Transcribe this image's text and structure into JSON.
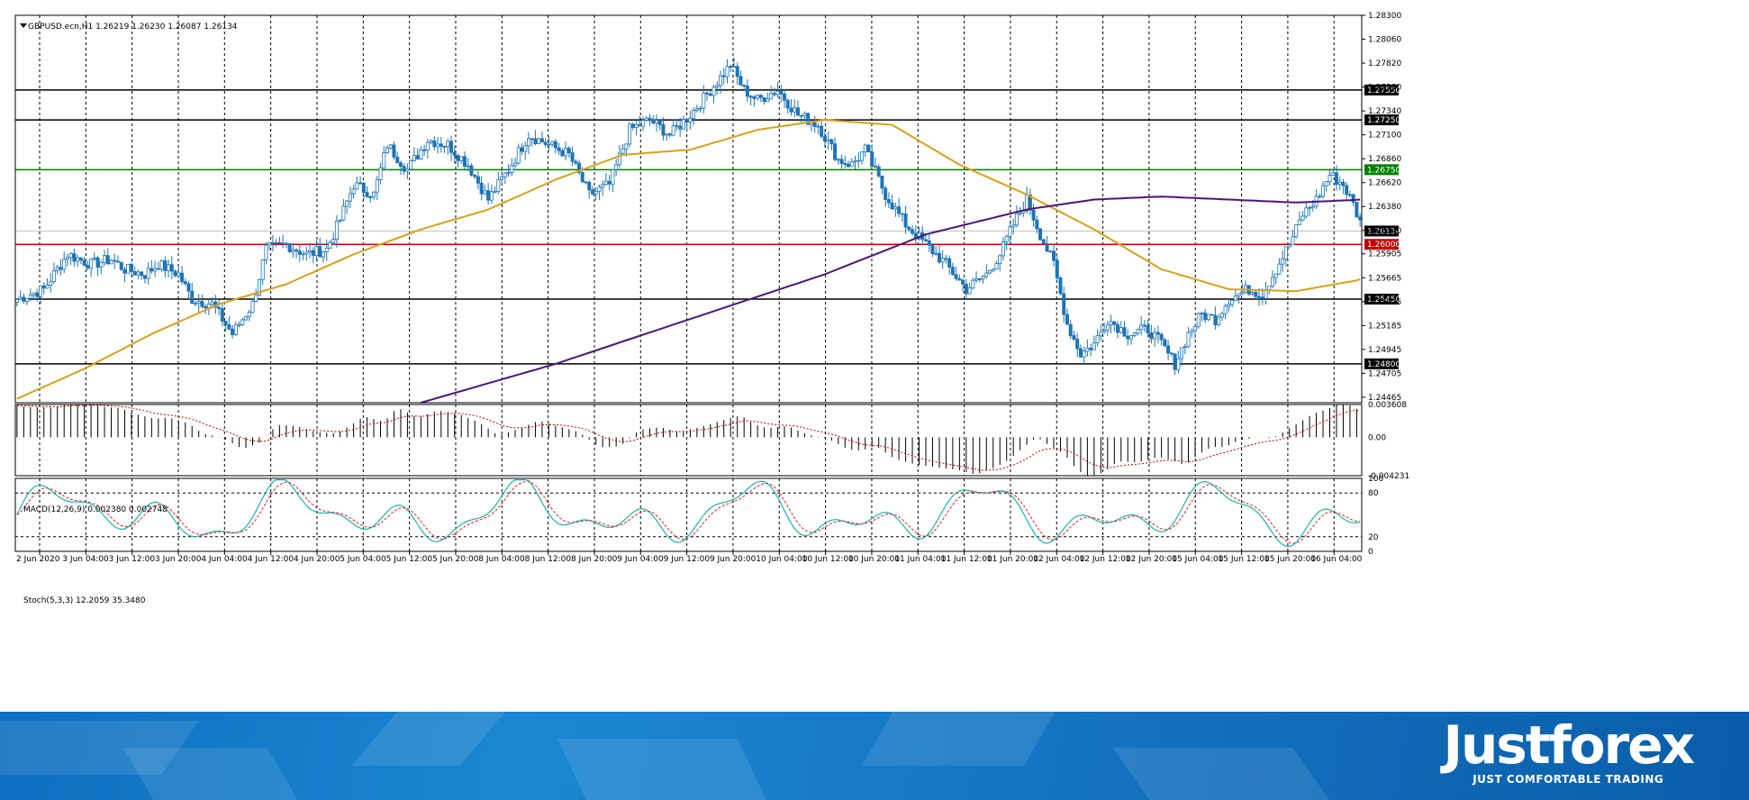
{
  "header": {
    "main_title": "GBPUSD.ecn,H1  1.26219 1.26230 1.26087 1.26134",
    "macd_title": "MACD(12,26,9) 0.002380 0.002748",
    "stoch_title": "Stoch(5,3,3) 12.2059 35.3480"
  },
  "brand": {
    "name": "Justforex",
    "tagline": "JUST COMFORTABLE TRADING"
  },
  "colors": {
    "bull": "#ffffff",
    "bear": "#1f74b4",
    "wick": "#1f74b4",
    "ma_fast": "#d4a21c",
    "ma_slow": "#4b1678",
    "level_black": "#000000",
    "level_green": "#008000",
    "level_red": "#c00000",
    "current_price_line": "#c0c0c0",
    "stoch_main": "#20b2aa",
    "stoch_signal": "#e02020"
  },
  "chart_data": [
    {
      "type": "candlestick",
      "title": "GBPUSD.ecn,H1  1.26219 1.26230 1.26087 1.26134",
      "ylim": [
        1.2441,
        1.283
      ],
      "y_ticks": [
        "1.28300",
        "1.28060",
        "1.27820",
        "1.27580",
        "1.27340",
        "1.27100",
        "1.26860",
        "1.26620",
        "1.26380",
        "1.26140",
        "1.25905",
        "1.25665",
        "1.25425",
        "1.25185",
        "1.24945",
        "1.24705",
        "1.24465"
      ],
      "x_ticks": [
        "2 Jun 2020",
        "3 Jun 04:00",
        "3 Jun 12:00",
        "3 Jun 20:00",
        "4 Jun 04:00",
        "4 Jun 12:00",
        "4 Jun 20:00",
        "5 Jun 04:00",
        "5 Jun 12:00",
        "5 Jun 20:00",
        "8 Jun 04:00",
        "8 Jun 12:00",
        "8 Jun 20:00",
        "9 Jun 04:00",
        "9 Jun 12:00",
        "9 Jun 20:00",
        "10 Jun 04:00",
        "10 Jun 12:00",
        "10 Jun 20:00",
        "11 Jun 04:00",
        "11 Jun 12:00",
        "11 Jun 20:00",
        "12 Jun 04:00",
        "12 Jun 12:00",
        "12 Jun 20:00",
        "15 Jun 04:00",
        "15 Jun 12:00",
        "15 Jun 20:00",
        "16 Jun 04:00"
      ],
      "grid": "dashed vertical",
      "close_path": [
        [
          0,
          1.2545
        ],
        [
          8,
          1.2555
        ],
        [
          15,
          1.259
        ],
        [
          22,
          1.258
        ],
        [
          28,
          1.2585
        ],
        [
          32,
          1.2575
        ],
        [
          38,
          1.257
        ],
        [
          42,
          1.258
        ],
        [
          48,
          1.257
        ],
        [
          52,
          1.2545
        ],
        [
          58,
          1.254
        ],
        [
          64,
          1.251
        ],
        [
          70,
          1.254
        ],
        [
          74,
          1.2595
        ],
        [
          80,
          1.26
        ],
        [
          86,
          1.259
        ],
        [
          92,
          1.2595
        ],
        [
          96,
          1.2625
        ],
        [
          100,
          1.266
        ],
        [
          106,
          1.265
        ],
        [
          110,
          1.27
        ],
        [
          116,
          1.2675
        ],
        [
          122,
          1.2705
        ],
        [
          128,
          1.27
        ],
        [
          134,
          1.268
        ],
        [
          140,
          1.2645
        ],
        [
          146,
          1.2675
        ],
        [
          152,
          1.271
        ],
        [
          158,
          1.27
        ],
        [
          164,
          1.269
        ],
        [
          170,
          1.265
        ],
        [
          176,
          1.266
        ],
        [
          182,
          1.2715
        ],
        [
          188,
          1.2725
        ],
        [
          194,
          1.271
        ],
        [
          200,
          1.273
        ],
        [
          206,
          1.2755
        ],
        [
          212,
          1.278
        ],
        [
          216,
          1.2755
        ],
        [
          220,
          1.2745
        ],
        [
          226,
          1.2755
        ],
        [
          232,
          1.273
        ],
        [
          238,
          1.272
        ],
        [
          244,
          1.2685
        ],
        [
          248,
          1.268
        ],
        [
          252,
          1.2695
        ],
        [
          258,
          1.265
        ],
        [
          264,
          1.262
        ],
        [
          270,
          1.26
        ],
        [
          276,
          1.258
        ],
        [
          282,
          1.2555
        ],
        [
          288,
          1.257
        ],
        [
          292,
          1.259
        ],
        [
          296,
          1.262
        ],
        [
          300,
          1.2645
        ],
        [
          304,
          1.261
        ],
        [
          308,
          1.258
        ],
        [
          312,
          1.252
        ],
        [
          316,
          1.249
        ],
        [
          320,
          1.25
        ],
        [
          324,
          1.2525
        ],
        [
          330,
          1.251
        ],
        [
          336,
          1.2515
        ],
        [
          340,
          1.25
        ],
        [
          344,
          1.248
        ],
        [
          348,
          1.251
        ],
        [
          352,
          1.253
        ],
        [
          356,
          1.2525
        ],
        [
          360,
          1.2545
        ],
        [
          366,
          1.2555
        ],
        [
          370,
          1.255
        ],
        [
          374,
          1.2575
        ],
        [
          378,
          1.26
        ],
        [
          382,
          1.263
        ],
        [
          386,
          1.2645
        ],
        [
          390,
          1.267
        ],
        [
          394,
          1.266
        ],
        [
          397,
          1.264
        ],
        [
          400,
          1.2613
        ]
      ],
      "ma_fast": [
        [
          0,
          1.2445
        ],
        [
          20,
          1.2475
        ],
        [
          40,
          1.251
        ],
        [
          60,
          1.254
        ],
        [
          80,
          1.256
        ],
        [
          100,
          1.259
        ],
        [
          120,
          1.2615
        ],
        [
          140,
          1.2635
        ],
        [
          160,
          1.2665
        ],
        [
          180,
          1.269
        ],
        [
          200,
          1.2695
        ],
        [
          220,
          1.2715
        ],
        [
          240,
          1.2725
        ],
        [
          260,
          1.272
        ],
        [
          280,
          1.268
        ],
        [
          300,
          1.265
        ],
        [
          320,
          1.2615
        ],
        [
          340,
          1.2575
        ],
        [
          360,
          1.2555
        ],
        [
          380,
          1.2553
        ],
        [
          400,
          1.2565
        ]
      ],
      "ma_slow": [
        [
          120,
          1.2441
        ],
        [
          160,
          1.248
        ],
        [
          200,
          1.2525
        ],
        [
          240,
          1.257
        ],
        [
          270,
          1.261
        ],
        [
          300,
          1.2635
        ],
        [
          320,
          1.2645
        ],
        [
          340,
          1.2648
        ],
        [
          360,
          1.2645
        ],
        [
          380,
          1.2642
        ],
        [
          400,
          1.2645
        ]
      ]
    },
    {
      "type": "histogram+line",
      "title": "MACD(12,26,9) 0.002380 0.002748",
      "ylim": [
        -0.004231,
        0.003608
      ],
      "y_ticks": [
        "0.003608",
        "0.00",
        "-0.004231"
      ]
    },
    {
      "type": "line",
      "title": "Stoch(5,3,3) 12.2059 35.3480",
      "ylim": [
        0,
        100
      ],
      "y_ticks": [
        "100",
        "80",
        "20",
        "0"
      ]
    }
  ],
  "levels": [
    {
      "price": "1.27550",
      "color": "black"
    },
    {
      "price": "1.27250",
      "color": "black"
    },
    {
      "price": "1.26750",
      "color": "green"
    },
    {
      "price": "1.26000",
      "color": "red"
    },
    {
      "price": "1.25450",
      "color": "black"
    },
    {
      "price": "1.24800",
      "color": "black"
    }
  ],
  "current_price": "1.26134"
}
